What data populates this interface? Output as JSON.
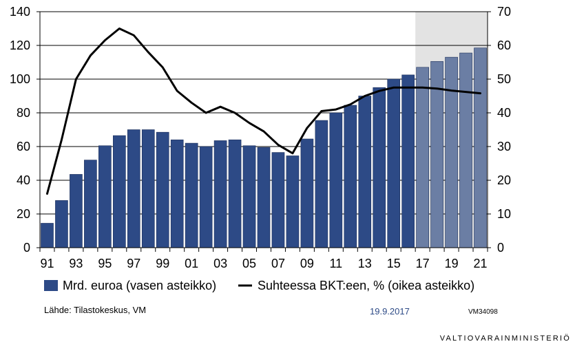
{
  "chart_data": {
    "type": "bar",
    "categories": [
      "91",
      "92",
      "93",
      "94",
      "95",
      "96",
      "97",
      "98",
      "99",
      "00",
      "01",
      "02",
      "03",
      "04",
      "05",
      "06",
      "07",
      "08",
      "09",
      "10",
      "11",
      "12",
      "13",
      "14",
      "15",
      "16",
      "17",
      "18",
      "19",
      "20",
      "21"
    ],
    "tick_labels": [
      "91",
      "93",
      "95",
      "97",
      "99",
      "01",
      "03",
      "05",
      "07",
      "09",
      "11",
      "13",
      "15",
      "17",
      "19",
      "21"
    ],
    "series": [
      {
        "name": "Mrd. euroa (vasen asteikko)",
        "kind": "bar",
        "axis": "left",
        "values": [
          14.5,
          28,
          43.5,
          52,
          60.5,
          66.5,
          70,
          70,
          68.5,
          64,
          62,
          60,
          63.5,
          64,
          60.5,
          59.5,
          56.5,
          54.5,
          64.5,
          75.5,
          80,
          84.5,
          90,
          95,
          100,
          102.5,
          107,
          110.5,
          113,
          115.5,
          118.5
        ]
      },
      {
        "name": "Suhteessa BKT:een, % (oikea asteikko)",
        "kind": "line",
        "axis": "right",
        "values": [
          16,
          32,
          50,
          57,
          61.5,
          65,
          63,
          58,
          53.5,
          46.5,
          43,
          40,
          41.8,
          40,
          37,
          34.5,
          30.5,
          28,
          35.5,
          40.5,
          41,
          42.5,
          45,
          46.5,
          47.5,
          47.5,
          47.5,
          47.2,
          46.6,
          46.2,
          45.8
        ]
      }
    ],
    "forecast_from": "17",
    "y_left": {
      "min": 0,
      "max": 140,
      "ticks": [
        0,
        20,
        40,
        60,
        80,
        100,
        120,
        140
      ]
    },
    "y_right": {
      "min": 0,
      "max": 70,
      "ticks": [
        0,
        10,
        20,
        30,
        40,
        50,
        60,
        70
      ]
    },
    "grid": true,
    "legend_position": "bottom",
    "colors": {
      "bar": "#2d4a86",
      "bar_forecast": "#6b7ea4",
      "line": "#000000",
      "forecast_shade": "#e3e3e3",
      "date": "#2d4a86"
    }
  },
  "legend": {
    "bar_label": "Mrd. euroa (vasen asteikko)",
    "line_label": "Suhteessa BKT:een, % (oikea asteikko)"
  },
  "footer": {
    "source": "Lähde: Tilastokeskus, VM",
    "date": "19.9.2017",
    "code": "VM34098",
    "brand": "VALTIOVARAINMINISTERIÖ"
  }
}
